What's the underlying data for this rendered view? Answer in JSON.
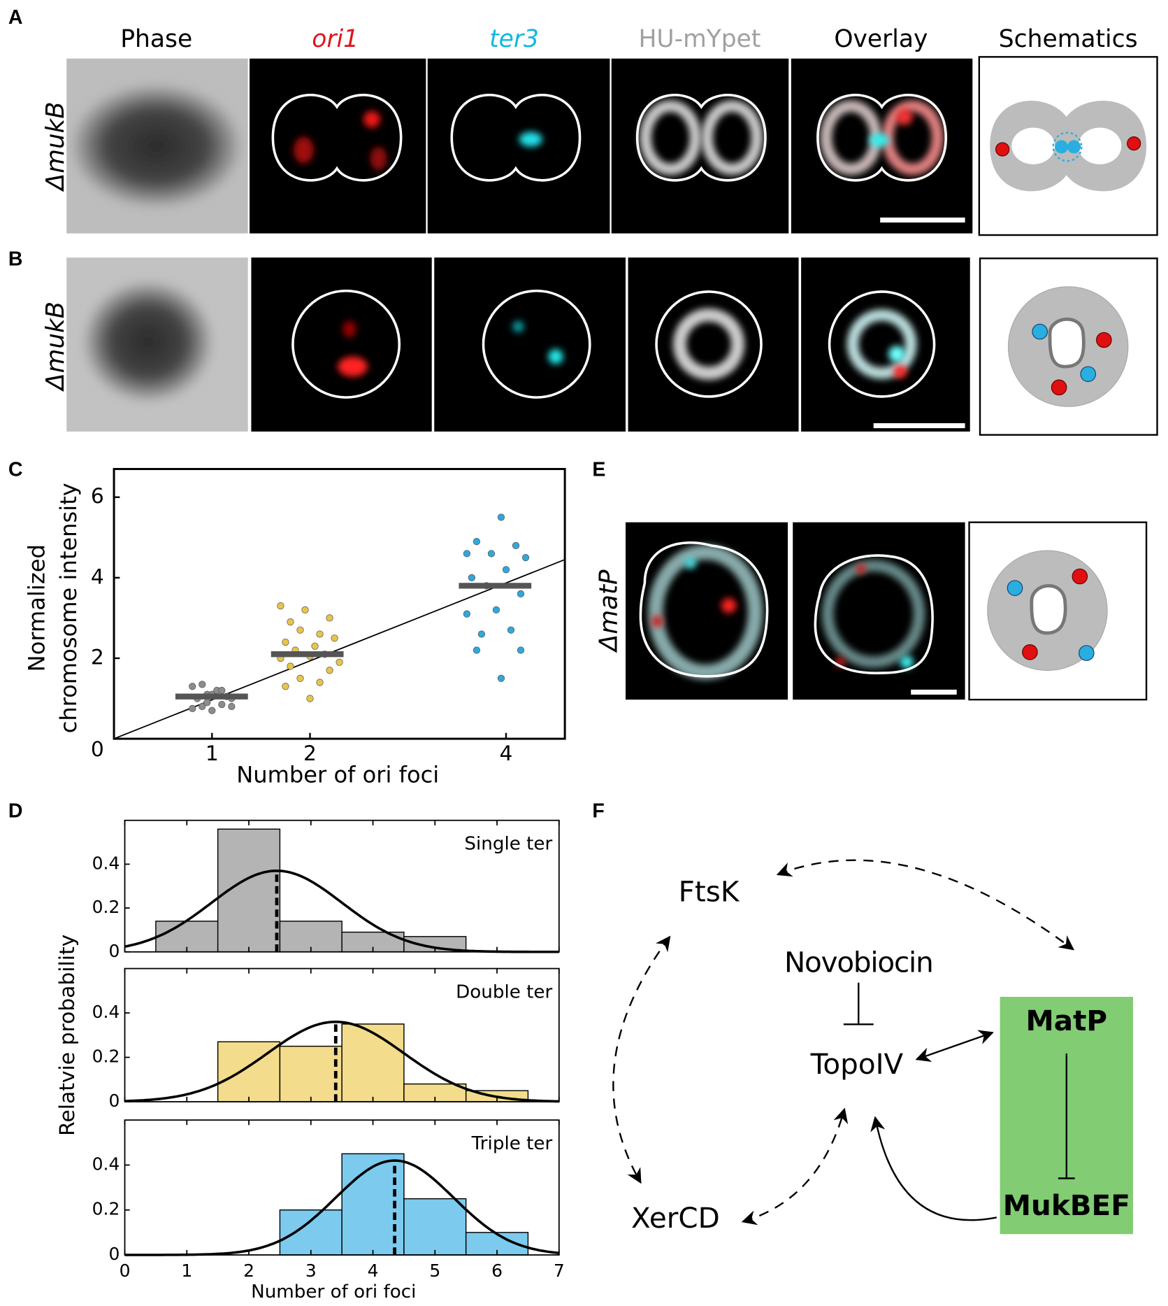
{
  "panel_labels": [
    "A",
    "B",
    "C",
    "D",
    "E",
    "F"
  ],
  "panel_a": {
    "columns": [
      "Phase",
      "ori1",
      "ter3",
      "HU-mYpet",
      "Overlay",
      "Schematics"
    ],
    "row_label": "ΔmukB"
  },
  "panel_b": {
    "row_label": "ΔmukB"
  },
  "panel_e": {
    "row_label": "ΔmatP"
  },
  "chart_data": [
    {
      "type": "scatter",
      "ylabel": [
        "Normalized",
        "chromosome intensity"
      ],
      "xlabel": "Number of ori foci",
      "xlim": [
        0,
        4.6
      ],
      "ylim": [
        0,
        6.7
      ],
      "xticks": [
        1,
        2,
        4
      ],
      "yticks": [
        0,
        2,
        4,
        6
      ],
      "series": [
        {
          "color": "#8c8c8c",
          "x": [
            0.8,
            0.9,
            1.0,
            1.1,
            1.2,
            0.85,
            0.95,
            1.05,
            1.15,
            0.8,
            0.9,
            1.0,
            1.1,
            1.2,
            0.95
          ],
          "values": [
            0.75,
            0.8,
            0.7,
            0.85,
            0.8,
            1.0,
            1.1,
            1.2,
            1.05,
            1.3,
            1.35,
            1.1,
            1.2,
            1.0,
            0.9
          ],
          "mean": 1.05
        },
        {
          "color": "#e8c44a",
          "x": [
            1.7,
            1.95,
            2.2,
            1.8,
            2.1,
            1.9,
            2.25,
            1.75,
            2.05,
            2.15,
            1.85,
            1.7,
            2.0,
            2.3,
            1.8,
            2.2,
            1.9,
            2.1,
            1.75,
            2.0
          ],
          "values": [
            3.3,
            3.2,
            3.0,
            2.9,
            2.6,
            2.7,
            2.5,
            2.4,
            2.3,
            2.1,
            2.2,
            2.0,
            2.05,
            1.9,
            1.8,
            1.7,
            1.5,
            1.4,
            1.3,
            1.0
          ],
          "mean": 2.1
        },
        {
          "color": "#2fa8dc",
          "x": [
            3.95,
            3.7,
            4.1,
            3.6,
            3.85,
            4.2,
            4.0,
            3.65,
            3.8,
            4.15,
            3.9,
            3.6,
            4.05,
            3.75,
            3.7,
            4.15,
            3.95
          ],
          "values": [
            5.5,
            4.9,
            4.8,
            4.6,
            4.6,
            4.5,
            4.2,
            4.0,
            3.8,
            3.6,
            3.2,
            3.1,
            2.7,
            2.6,
            2.2,
            2.2,
            1.5
          ],
          "mean": 3.8
        }
      ],
      "fit_line": {
        "x": [
          0,
          4.6
        ],
        "values": [
          0,
          4.45
        ]
      }
    },
    {
      "type": "histogram",
      "title": "Single ter",
      "color": "#b4b4b4",
      "bins": [
        0.5,
        1.5,
        2.5,
        3.5,
        4.5,
        5.5
      ],
      "values": [
        0.14,
        0.56,
        0.14,
        0.09,
        0.07
      ],
      "fit": {
        "mean": 2.45,
        "peak": 0.37,
        "sd": 1.05
      },
      "xlim": [
        0,
        7
      ],
      "ylim": [
        0,
        0.6
      ],
      "xticks": [
        0,
        1,
        2,
        3,
        4,
        5,
        6,
        7
      ],
      "yticks": [
        0,
        0.2,
        0.4
      ],
      "xtick_labels": false
    },
    {
      "type": "histogram",
      "title": "Double ter",
      "color": "#f3dc8c",
      "bins": [
        1.5,
        2.5,
        3.5,
        4.5,
        5.5,
        6.5
      ],
      "values": [
        0.27,
        0.25,
        0.35,
        0.08,
        0.05
      ],
      "fit": {
        "mean": 3.4,
        "peak": 0.36,
        "sd": 1.1
      },
      "xlim": [
        0,
        7
      ],
      "ylim": [
        0,
        0.6
      ],
      "xticks": [
        0,
        1,
        2,
        3,
        4,
        5,
        6,
        7
      ],
      "yticks": [
        0,
        0.2,
        0.4
      ],
      "xtick_labels": false,
      "ylabel": "Relatvie probability"
    },
    {
      "type": "histogram",
      "title": "Triple ter",
      "color": "#7ccbee",
      "bins": [
        2.5,
        3.5,
        4.5,
        5.5,
        6.5
      ],
      "values": [
        0.2,
        0.45,
        0.25,
        0.1
      ],
      "fit": {
        "mean": 4.35,
        "peak": 0.42,
        "sd": 0.95
      },
      "xlim": [
        0,
        7
      ],
      "ylim": [
        0,
        0.6
      ],
      "xticks": [
        0,
        1,
        2,
        3,
        4,
        5,
        6,
        7
      ],
      "yticks": [
        0,
        0.2,
        0.4
      ],
      "xtick_labels": true,
      "xlabel": "Number of ori foci"
    }
  ],
  "diagram": {
    "nodes": [
      {
        "label": "FtsK"
      },
      {
        "label": "Novobiocin"
      },
      {
        "label": "TopoIV"
      },
      {
        "label": "XerCD"
      },
      {
        "label": "MatP"
      },
      {
        "label": "MukBEF"
      }
    ]
  }
}
